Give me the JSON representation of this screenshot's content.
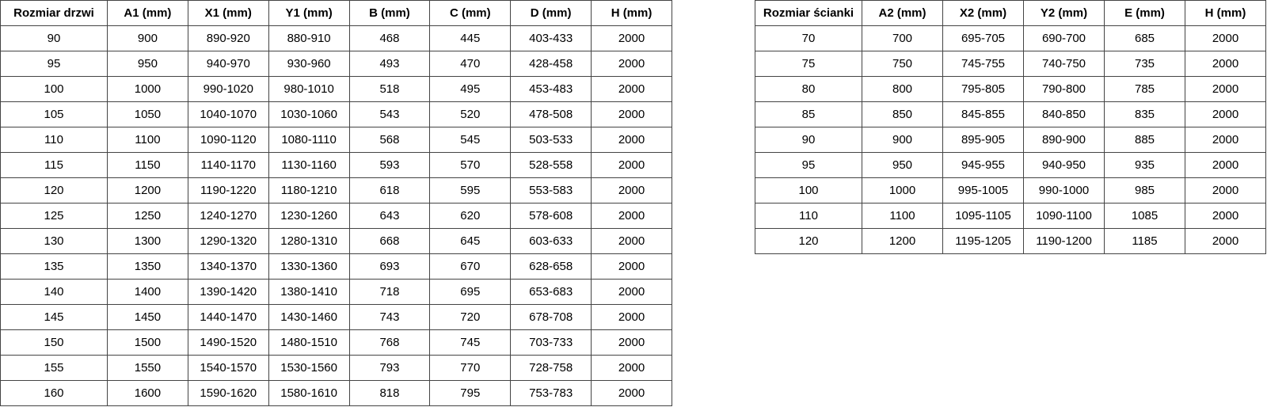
{
  "table1": {
    "headers": [
      "Rozmiar drzwi",
      "A1 (mm)",
      "X1 (mm)",
      "Y1 (mm)",
      "B (mm)",
      "C (mm)",
      "D (mm)",
      "H (mm)"
    ],
    "rows": [
      [
        "90",
        "900",
        "890-920",
        "880-910",
        "468",
        "445",
        "403-433",
        "2000"
      ],
      [
        "95",
        "950",
        "940-970",
        "930-960",
        "493",
        "470",
        "428-458",
        "2000"
      ],
      [
        "100",
        "1000",
        "990-1020",
        "980-1010",
        "518",
        "495",
        "453-483",
        "2000"
      ],
      [
        "105",
        "1050",
        "1040-1070",
        "1030-1060",
        "543",
        "520",
        "478-508",
        "2000"
      ],
      [
        "110",
        "1100",
        "1090-1120",
        "1080-1110",
        "568",
        "545",
        "503-533",
        "2000"
      ],
      [
        "115",
        "1150",
        "1140-1170",
        "1130-1160",
        "593",
        "570",
        "528-558",
        "2000"
      ],
      [
        "120",
        "1200",
        "1190-1220",
        "1180-1210",
        "618",
        "595",
        "553-583",
        "2000"
      ],
      [
        "125",
        "1250",
        "1240-1270",
        "1230-1260",
        "643",
        "620",
        "578-608",
        "2000"
      ],
      [
        "130",
        "1300",
        "1290-1320",
        "1280-1310",
        "668",
        "645",
        "603-633",
        "2000"
      ],
      [
        "135",
        "1350",
        "1340-1370",
        "1330-1360",
        "693",
        "670",
        "628-658",
        "2000"
      ],
      [
        "140",
        "1400",
        "1390-1420",
        "1380-1410",
        "718",
        "695",
        "653-683",
        "2000"
      ],
      [
        "145",
        "1450",
        "1440-1470",
        "1430-1460",
        "743",
        "720",
        "678-708",
        "2000"
      ],
      [
        "150",
        "1500",
        "1490-1520",
        "1480-1510",
        "768",
        "745",
        "703-733",
        "2000"
      ],
      [
        "155",
        "1550",
        "1540-1570",
        "1530-1560",
        "793",
        "770",
        "728-758",
        "2000"
      ],
      [
        "160",
        "1600",
        "1590-1620",
        "1580-1610",
        "818",
        "795",
        "753-783",
        "2000"
      ]
    ]
  },
  "table2": {
    "headers": [
      "Rozmiar ścianki",
      "A2 (mm)",
      "X2 (mm)",
      "Y2 (mm)",
      "E (mm)",
      "H (mm)"
    ],
    "rows": [
      [
        "70",
        "700",
        "695-705",
        "690-700",
        "685",
        "2000"
      ],
      [
        "75",
        "750",
        "745-755",
        "740-750",
        "735",
        "2000"
      ],
      [
        "80",
        "800",
        "795-805",
        "790-800",
        "785",
        "2000"
      ],
      [
        "85",
        "850",
        "845-855",
        "840-850",
        "835",
        "2000"
      ],
      [
        "90",
        "900",
        "895-905",
        "890-900",
        "885",
        "2000"
      ],
      [
        "95",
        "950",
        "945-955",
        "940-950",
        "935",
        "2000"
      ],
      [
        "100",
        "1000",
        "995-1005",
        "990-1000",
        "985",
        "2000"
      ],
      [
        "110",
        "1100",
        "1095-1105",
        "1090-1100",
        "1085",
        "2000"
      ],
      [
        "120",
        "1200",
        "1195-1205",
        "1190-1200",
        "1185",
        "2000"
      ]
    ]
  }
}
